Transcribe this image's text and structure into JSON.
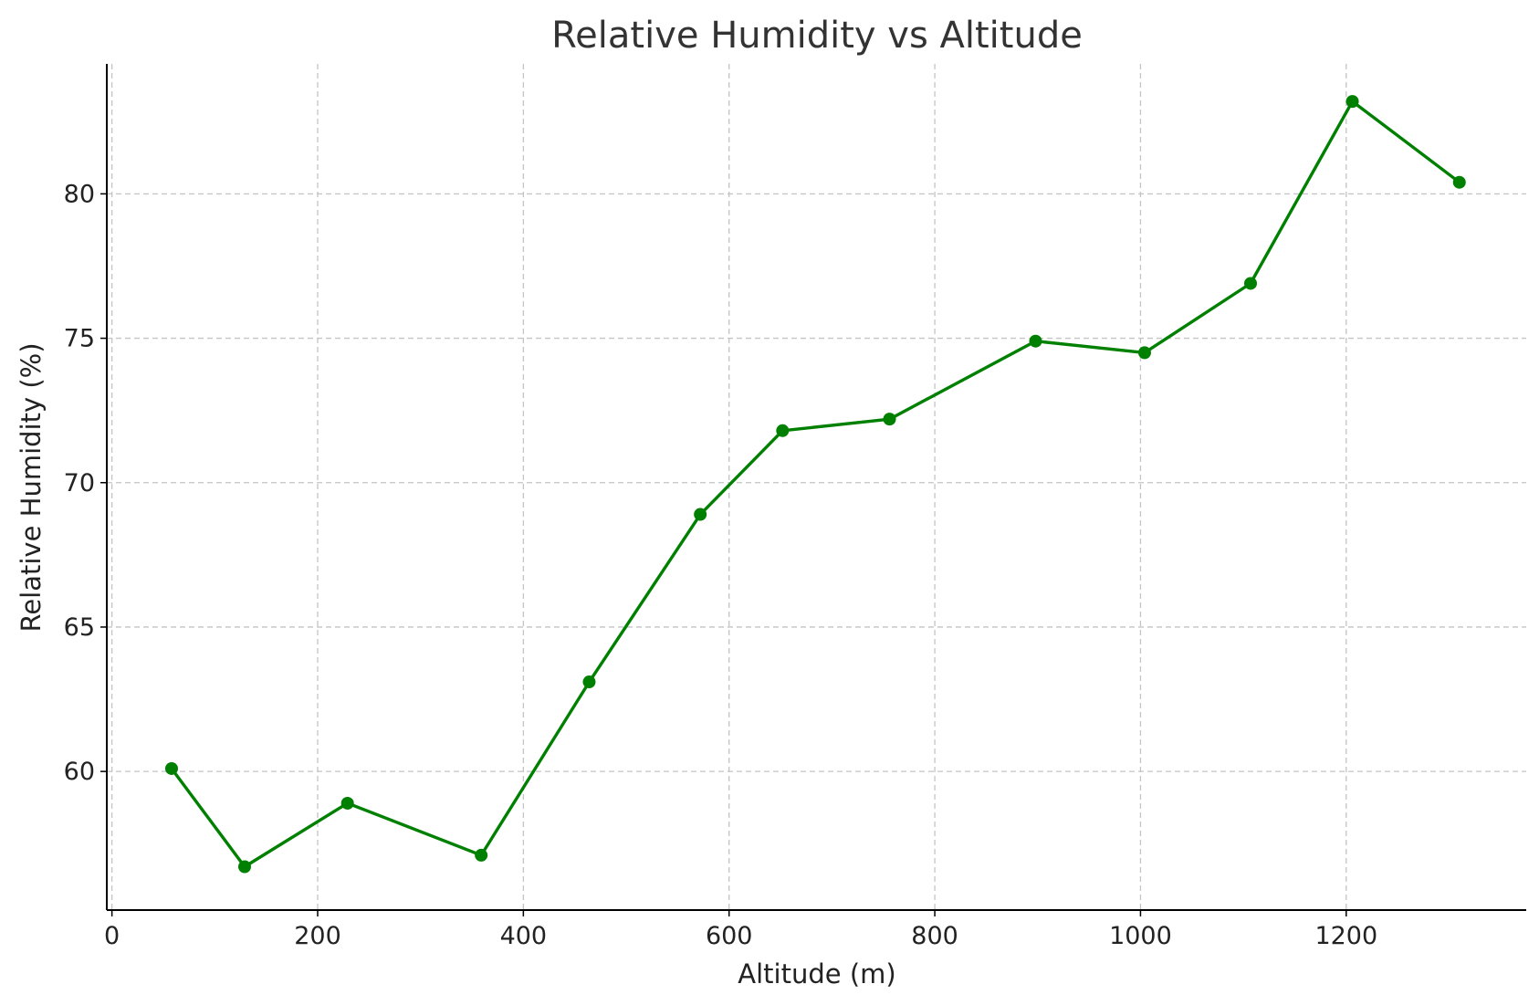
{
  "chart_data": {
    "type": "line",
    "title": "Relative Humidity vs Altitude",
    "xlabel": "Altitude (m)",
    "ylabel": "Relative Humidity (%)",
    "xlim": [
      -5,
      1375
    ],
    "ylim": [
      55.2,
      84.5
    ],
    "xticks": [
      0,
      200,
      400,
      600,
      800,
      1000,
      1200
    ],
    "yticks": [
      60,
      65,
      70,
      75,
      80
    ],
    "grid": true,
    "legend": "none",
    "series": [
      {
        "color": "#008000",
        "marker": "circle",
        "x": [
          58,
          129,
          229,
          359,
          464,
          572,
          652,
          756,
          898,
          1004,
          1107,
          1206,
          1310
        ],
        "y": [
          60.1,
          56.7,
          58.9,
          57.1,
          63.1,
          68.9,
          71.8,
          72.2,
          74.9,
          74.5,
          76.9,
          83.2,
          80.4
        ]
      }
    ]
  }
}
